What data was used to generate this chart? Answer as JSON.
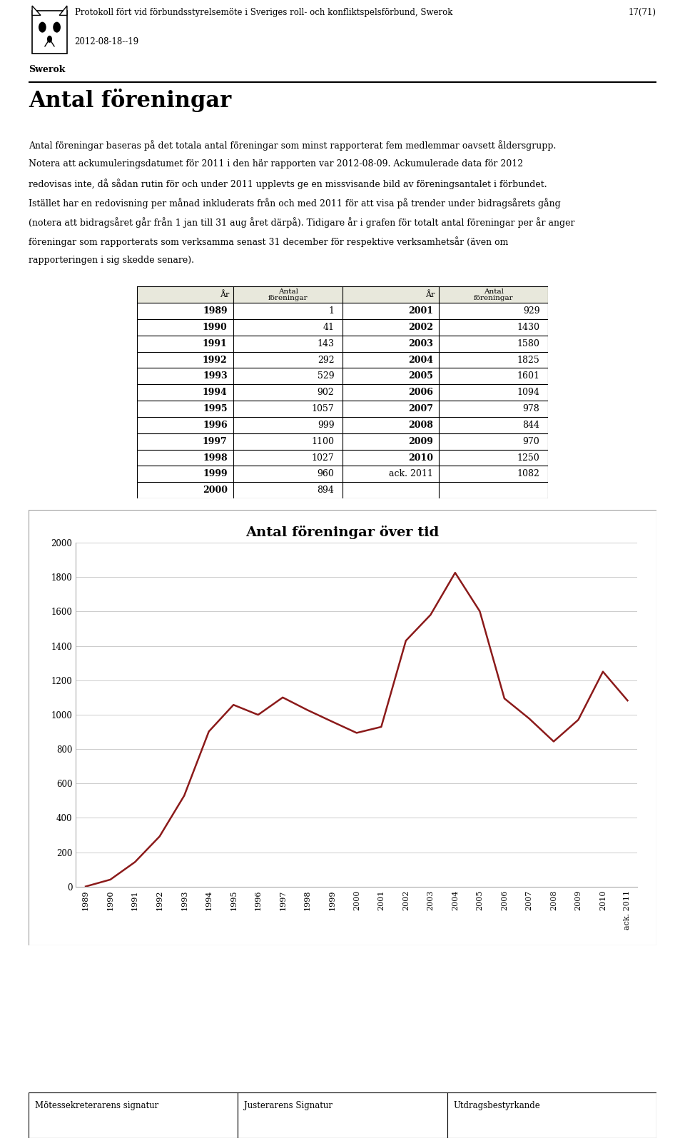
{
  "header_text": "Protokoll fört vid förbundsstyrelsemöte i Sveriges roll- och konfliktspelsförbund, Swerok",
  "header_right": "17(71)",
  "header_date": "2012-08-18--19",
  "org_name": "Swerok",
  "section_title": "Antal föreningar",
  "body_text_lines": [
    "Antal föreningar baseras på det totala antal föreningar som minst rapporterat fem medlemmar oavsett åldersgrupp.",
    "Notera att ackumuleringsdatumet för 2011 i den här rapporten var 2012-08-09. Ackumulerade data för 2012",
    "redovisas inte, då sådan rutin för och under 2011 upplevts ge en missvisande bild av föreningsantalet i förbundet.",
    "Istället har en redovisning per månad inkluderats från och med 2011 för att visa på trender under bidragsårets gång",
    "(notera att bidragsåret går från 1 jan till 31 aug året därpå). Tidigare år i grafen för totalt antal föreningar per år anger",
    "föreningar som rapporterats som verksamma senast 31 december för respektive verksamhetsår (även om",
    "rapporteringen i sig skedde senare)."
  ],
  "table_col1_years": [
    "1989",
    "1990",
    "1991",
    "1992",
    "1993",
    "1994",
    "1995",
    "1996",
    "1997",
    "1998",
    "1999",
    "2000"
  ],
  "table_col1_vals": [
    1,
    41,
    143,
    292,
    529,
    902,
    1057,
    999,
    1100,
    1027,
    960,
    894
  ],
  "table_col2_years": [
    "2001",
    "2002",
    "2003",
    "2004",
    "2005",
    "2006",
    "2007",
    "2008",
    "2009",
    "2010",
    "ack. 2011",
    ""
  ],
  "table_col2_vals": [
    929,
    1430,
    1580,
    1825,
    1601,
    1094,
    978,
    844,
    970,
    1250,
    1082,
    null
  ],
  "chart_title": "Antal föreningar över tid",
  "chart_years": [
    "1989",
    "1990",
    "1991",
    "1992",
    "1993",
    "1994",
    "1995",
    "1996",
    "1997",
    "1998",
    "1999",
    "2000",
    "2001",
    "2002",
    "2003",
    "2004",
    "2005",
    "2006",
    "2007",
    "2008",
    "2009",
    "2010",
    "ack. 2011"
  ],
  "chart_values": [
    1,
    41,
    143,
    292,
    529,
    902,
    1057,
    999,
    1100,
    1027,
    960,
    894,
    929,
    1430,
    1580,
    1825,
    1601,
    1094,
    978,
    844,
    970,
    1250,
    1082
  ],
  "chart_ylim": [
    0,
    2000
  ],
  "chart_yticks": [
    0,
    200,
    400,
    600,
    800,
    1000,
    1200,
    1400,
    1600,
    1800,
    2000
  ],
  "line_color": "#8B1A1A",
  "footer_items": [
    "Mötessekreterarens signatur",
    "Justerarens Signatur",
    "Utdragsbestyrkande"
  ],
  "table_header_bg": "#E8E8DC",
  "page_bg": "#FFFFFF"
}
